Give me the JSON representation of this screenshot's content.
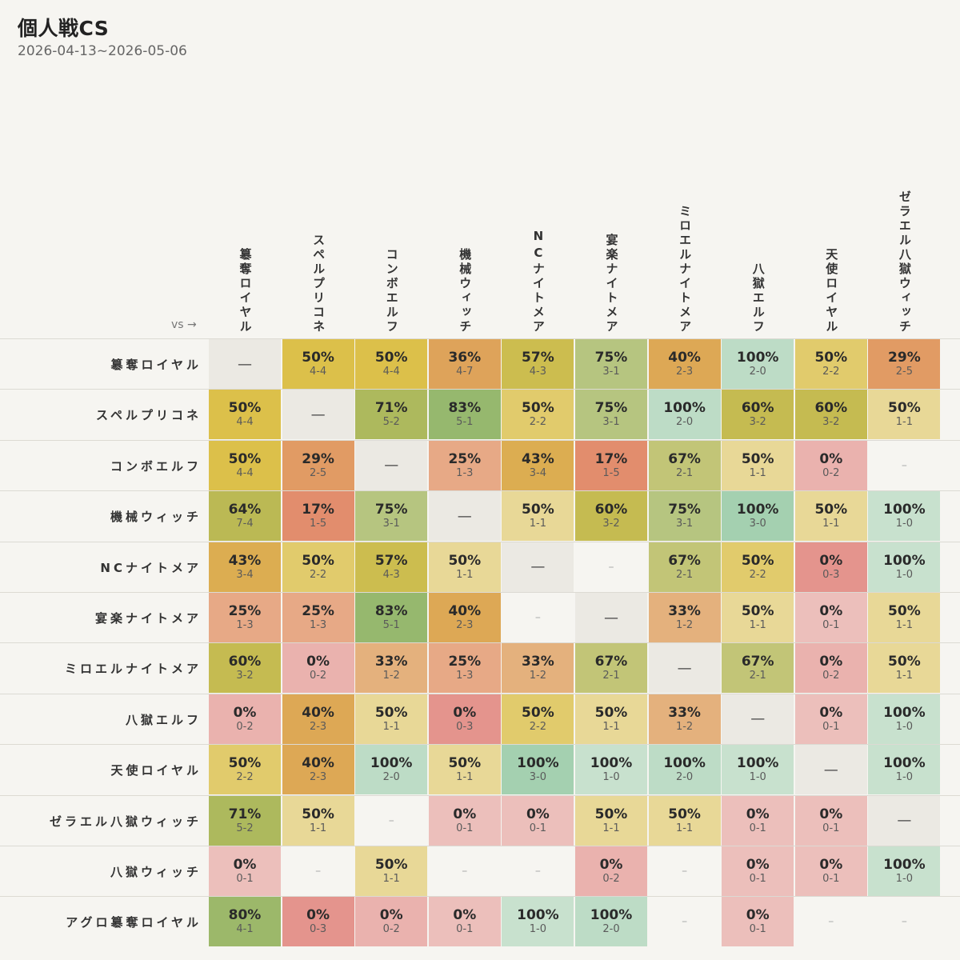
{
  "header": {
    "title": "個人戦CS",
    "date_range": "2026-04-13~2026-05-06",
    "vs_label": "vs →"
  },
  "colors": {
    "background": "#f6f5f1",
    "diagonal": "#ebe9e3",
    "scale_low": "#e07b73",
    "scale_mid": "#dcc04a",
    "scale_high": "#8fc79e"
  },
  "chart_data": {
    "type": "heatmap",
    "title": "個人戦CS",
    "subtitle": "2026-04-13~2026-05-06",
    "rows": [
      "簒奪ロイヤル",
      "スペルプリコネ",
      "コンボエルフ",
      "機械ウィッチ",
      "NCナイトメア",
      "宴楽ナイトメア",
      "ミロエルナイトメア",
      "八獄エルフ",
      "天使ロイヤル",
      "ゼラエル八獄ウィッチ",
      "八獄ウィッチ",
      "アグロ簒奪ロイヤル"
    ],
    "columns": [
      "簒奪ロイヤル",
      "スペルプリコネ",
      "コンボエルフ",
      "機械ウィッチ",
      "NCナイトメア",
      "宴楽ナイトメア",
      "ミロエルナイトメア",
      "八獄エルフ",
      "天使ロイヤル",
      "ゼラエル八獄ウィッチ"
    ],
    "cells": [
      [
        null,
        {
          "pct": "50%",
          "rec": "4-4",
          "v": 0.5
        },
        {
          "pct": "50%",
          "rec": "4-4",
          "v": 0.5
        },
        {
          "pct": "36%",
          "rec": "4-7",
          "v": 0.36
        },
        {
          "pct": "57%",
          "rec": "4-3",
          "v": 0.57
        },
        {
          "pct": "75%",
          "rec": "3-1",
          "v": 0.75
        },
        {
          "pct": "40%",
          "rec": "2-3",
          "v": 0.4
        },
        {
          "pct": "100%",
          "rec": "2-0",
          "v": 1.0
        },
        {
          "pct": "50%",
          "rec": "2-2",
          "v": 0.5
        },
        {
          "pct": "29%",
          "rec": "2-5",
          "v": 0.29
        }
      ],
      [
        {
          "pct": "50%",
          "rec": "4-4",
          "v": 0.5
        },
        null,
        {
          "pct": "71%",
          "rec": "5-2",
          "v": 0.71
        },
        {
          "pct": "83%",
          "rec": "5-1",
          "v": 0.83
        },
        {
          "pct": "50%",
          "rec": "2-2",
          "v": 0.5
        },
        {
          "pct": "75%",
          "rec": "3-1",
          "v": 0.75
        },
        {
          "pct": "100%",
          "rec": "2-0",
          "v": 1.0
        },
        {
          "pct": "60%",
          "rec": "3-2",
          "v": 0.6
        },
        {
          "pct": "60%",
          "rec": "3-2",
          "v": 0.6
        },
        {
          "pct": "50%",
          "rec": "1-1",
          "v": 0.5
        }
      ],
      [
        {
          "pct": "50%",
          "rec": "4-4",
          "v": 0.5
        },
        {
          "pct": "29%",
          "rec": "2-5",
          "v": 0.29
        },
        null,
        {
          "pct": "25%",
          "rec": "1-3",
          "v": 0.25
        },
        {
          "pct": "43%",
          "rec": "3-4",
          "v": 0.43
        },
        {
          "pct": "17%",
          "rec": "1-5",
          "v": 0.17
        },
        {
          "pct": "67%",
          "rec": "2-1",
          "v": 0.67
        },
        {
          "pct": "50%",
          "rec": "1-1",
          "v": 0.5
        },
        {
          "pct": "0%",
          "rec": "0-2",
          "v": 0.0
        },
        "empty"
      ],
      [
        {
          "pct": "64%",
          "rec": "7-4",
          "v": 0.64
        },
        {
          "pct": "17%",
          "rec": "1-5",
          "v": 0.17
        },
        {
          "pct": "75%",
          "rec": "3-1",
          "v": 0.75
        },
        null,
        {
          "pct": "50%",
          "rec": "1-1",
          "v": 0.5
        },
        {
          "pct": "60%",
          "rec": "3-2",
          "v": 0.6
        },
        {
          "pct": "75%",
          "rec": "3-1",
          "v": 0.75
        },
        {
          "pct": "100%",
          "rec": "3-0",
          "v": 1.0
        },
        {
          "pct": "50%",
          "rec": "1-1",
          "v": 0.5
        },
        {
          "pct": "100%",
          "rec": "1-0",
          "v": 1.0
        }
      ],
      [
        {
          "pct": "43%",
          "rec": "3-4",
          "v": 0.43
        },
        {
          "pct": "50%",
          "rec": "2-2",
          "v": 0.5
        },
        {
          "pct": "57%",
          "rec": "4-3",
          "v": 0.57
        },
        {
          "pct": "50%",
          "rec": "1-1",
          "v": 0.5
        },
        null,
        "empty",
        {
          "pct": "67%",
          "rec": "2-1",
          "v": 0.67
        },
        {
          "pct": "50%",
          "rec": "2-2",
          "v": 0.5
        },
        {
          "pct": "0%",
          "rec": "0-3",
          "v": 0.0
        },
        {
          "pct": "100%",
          "rec": "1-0",
          "v": 1.0
        }
      ],
      [
        {
          "pct": "25%",
          "rec": "1-3",
          "v": 0.25
        },
        {
          "pct": "25%",
          "rec": "1-3",
          "v": 0.25
        },
        {
          "pct": "83%",
          "rec": "5-1",
          "v": 0.83
        },
        {
          "pct": "40%",
          "rec": "2-3",
          "v": 0.4
        },
        "empty",
        null,
        {
          "pct": "33%",
          "rec": "1-2",
          "v": 0.33
        },
        {
          "pct": "50%",
          "rec": "1-1",
          "v": 0.5
        },
        {
          "pct": "0%",
          "rec": "0-1",
          "v": 0.0
        },
        {
          "pct": "50%",
          "rec": "1-1",
          "v": 0.5
        }
      ],
      [
        {
          "pct": "60%",
          "rec": "3-2",
          "v": 0.6
        },
        {
          "pct": "0%",
          "rec": "0-2",
          "v": 0.0
        },
        {
          "pct": "33%",
          "rec": "1-2",
          "v": 0.33
        },
        {
          "pct": "25%",
          "rec": "1-3",
          "v": 0.25
        },
        {
          "pct": "33%",
          "rec": "1-2",
          "v": 0.33
        },
        {
          "pct": "67%",
          "rec": "2-1",
          "v": 0.67
        },
        null,
        {
          "pct": "67%",
          "rec": "2-1",
          "v": 0.67
        },
        {
          "pct": "0%",
          "rec": "0-2",
          "v": 0.0
        },
        {
          "pct": "50%",
          "rec": "1-1",
          "v": 0.5
        }
      ],
      [
        {
          "pct": "0%",
          "rec": "0-2",
          "v": 0.0
        },
        {
          "pct": "40%",
          "rec": "2-3",
          "v": 0.4
        },
        {
          "pct": "50%",
          "rec": "1-1",
          "v": 0.5
        },
        {
          "pct": "0%",
          "rec": "0-3",
          "v": 0.0
        },
        {
          "pct": "50%",
          "rec": "2-2",
          "v": 0.5
        },
        {
          "pct": "50%",
          "rec": "1-1",
          "v": 0.5
        },
        {
          "pct": "33%",
          "rec": "1-2",
          "v": 0.33
        },
        null,
        {
          "pct": "0%",
          "rec": "0-1",
          "v": 0.0
        },
        {
          "pct": "100%",
          "rec": "1-0",
          "v": 1.0
        }
      ],
      [
        {
          "pct": "50%",
          "rec": "2-2",
          "v": 0.5
        },
        {
          "pct": "40%",
          "rec": "2-3",
          "v": 0.4
        },
        {
          "pct": "100%",
          "rec": "2-0",
          "v": 1.0
        },
        {
          "pct": "50%",
          "rec": "1-1",
          "v": 0.5
        },
        {
          "pct": "100%",
          "rec": "3-0",
          "v": 1.0
        },
        {
          "pct": "100%",
          "rec": "1-0",
          "v": 1.0
        },
        {
          "pct": "100%",
          "rec": "2-0",
          "v": 1.0
        },
        {
          "pct": "100%",
          "rec": "1-0",
          "v": 1.0
        },
        null,
        {
          "pct": "100%",
          "rec": "1-0",
          "v": 1.0
        }
      ],
      [
        {
          "pct": "71%",
          "rec": "5-2",
          "v": 0.71
        },
        {
          "pct": "50%",
          "rec": "1-1",
          "v": 0.5
        },
        "empty",
        {
          "pct": "0%",
          "rec": "0-1",
          "v": 0.0
        },
        {
          "pct": "0%",
          "rec": "0-1",
          "v": 0.0
        },
        {
          "pct": "50%",
          "rec": "1-1",
          "v": 0.5
        },
        {
          "pct": "50%",
          "rec": "1-1",
          "v": 0.5
        },
        {
          "pct": "0%",
          "rec": "0-1",
          "v": 0.0
        },
        {
          "pct": "0%",
          "rec": "0-1",
          "v": 0.0
        },
        null
      ],
      [
        {
          "pct": "0%",
          "rec": "0-1",
          "v": 0.0
        },
        "empty",
        {
          "pct": "50%",
          "rec": "1-1",
          "v": 0.5
        },
        "empty",
        "empty",
        {
          "pct": "0%",
          "rec": "0-2",
          "v": 0.0
        },
        "empty",
        {
          "pct": "0%",
          "rec": "0-1",
          "v": 0.0
        },
        {
          "pct": "0%",
          "rec": "0-1",
          "v": 0.0
        },
        {
          "pct": "100%",
          "rec": "1-0",
          "v": 1.0
        }
      ],
      [
        {
          "pct": "80%",
          "rec": "4-1",
          "v": 0.8
        },
        {
          "pct": "0%",
          "rec": "0-3",
          "v": 0.0
        },
        {
          "pct": "0%",
          "rec": "0-2",
          "v": 0.0
        },
        {
          "pct": "0%",
          "rec": "0-1",
          "v": 0.0
        },
        {
          "pct": "100%",
          "rec": "1-0",
          "v": 1.0
        },
        {
          "pct": "100%",
          "rec": "2-0",
          "v": 1.0
        },
        "empty",
        {
          "pct": "0%",
          "rec": "0-1",
          "v": 0.0
        },
        "empty",
        "empty"
      ]
    ],
    "diag_symbol": "—",
    "empty_symbol": "–"
  }
}
